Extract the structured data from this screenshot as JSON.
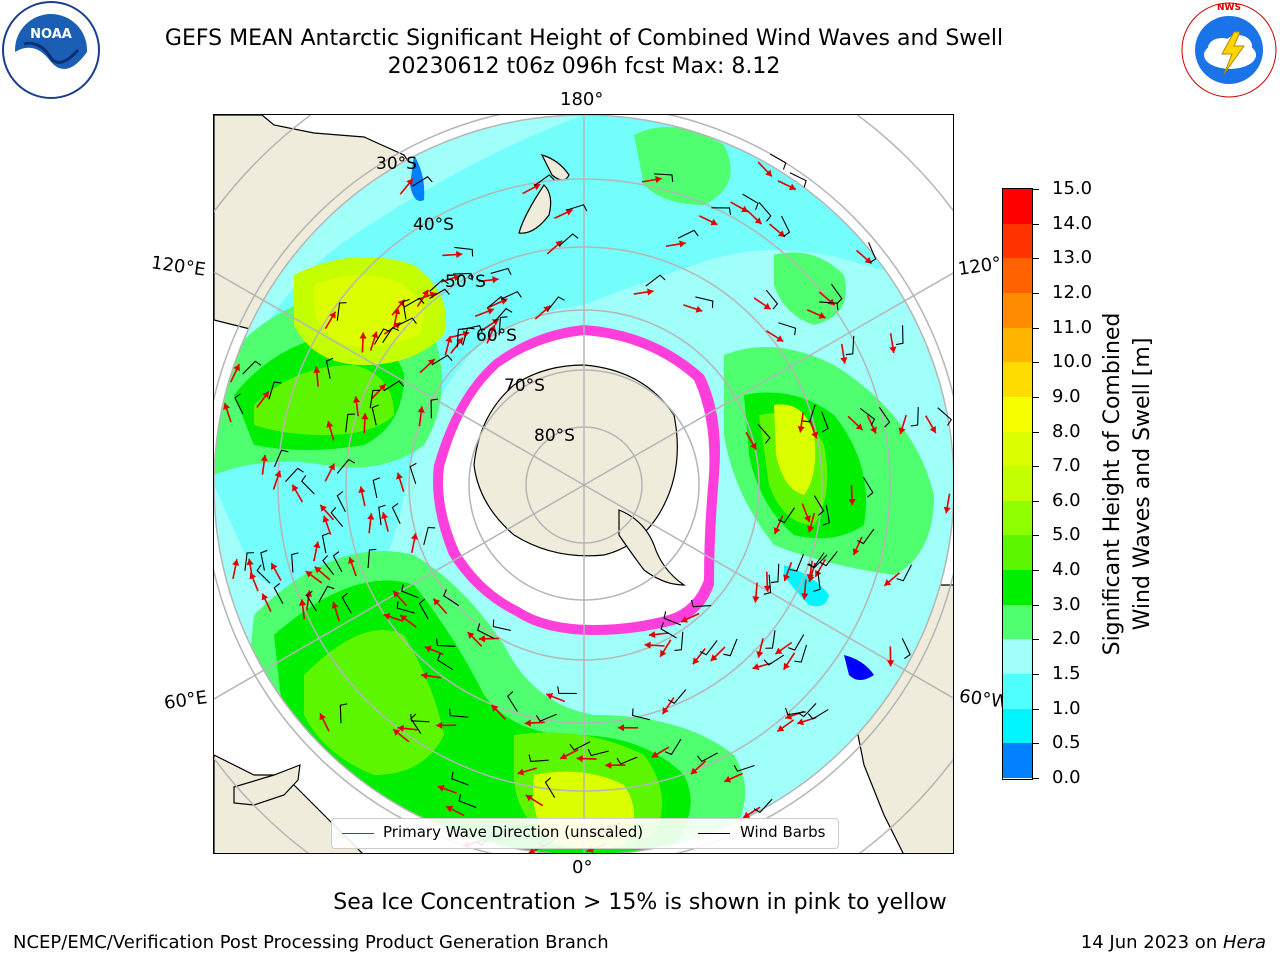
{
  "title": {
    "line1": "GEFS MEAN Antarctic Significant Height of Combined Wind Waves and Swell",
    "line2": "20230612 t06z 096h fcst   Max: 8.12"
  },
  "logos": {
    "left": {
      "text": "NOAA",
      "ring_text": "NATIONAL OCEANIC AND ATMOSPHERIC ADMINISTRATION • U.S. DEPARTMENT OF COMMERCE"
    },
    "right": {
      "ring_text": "NATIONAL WEATHER SERVICE"
    }
  },
  "map": {
    "projection": "south-polar-stereographic",
    "lon_labels": {
      "top": "180°",
      "upper_left": "120°E",
      "upper_right": "120°",
      "lower_left": "60°E",
      "lower_right": "60°W",
      "bottom": "0°"
    },
    "lat_labels": [
      "30°S",
      "40°S",
      "50°S",
      "60°S",
      "70°S",
      "80°S"
    ],
    "colors": {
      "land": "#efecdc",
      "ice_edge": "#ff3fdc",
      "ocean_low": "#9ffcff"
    }
  },
  "colorbar": {
    "ticks": [
      "15.0",
      "14.0",
      "13.0",
      "12.0",
      "11.0",
      "10.0",
      "9.0",
      "8.0",
      "7.0",
      "6.0",
      "5.0",
      "4.0",
      "3.0",
      "2.0",
      "1.5",
      "1.0",
      "0.5",
      "0.0"
    ],
    "colors_top_to_bottom": [
      "#ff0000",
      "#ff3300",
      "#ff6000",
      "#ff8c00",
      "#ffb400",
      "#ffdc00",
      "#f5ff00",
      "#dcff00",
      "#c3ff00",
      "#8eff00",
      "#5cf700",
      "#00ee00",
      "#4fff70",
      "#a1fff9",
      "#4ffefe",
      "#00f5ff",
      "#0080ff",
      "#0000ff"
    ],
    "label_line1": "Significant Height of Combined",
    "label_line2": "Wind Waves and Swell [m]"
  },
  "legend": {
    "items": [
      {
        "label": "Primary Wave Direction (unscaled)",
        "color": "#ff0000"
      },
      {
        "label": "Wind Barbs",
        "color": "#000000"
      }
    ]
  },
  "subcaption": "Sea Ice Concentration > 15% is shown in pink to yellow",
  "footer": {
    "left": "NCEP/EMC/Verification Post Processing Product Generation Branch",
    "right_prefix": "14 Jun 2023 on ",
    "right_machine": "Hera"
  }
}
